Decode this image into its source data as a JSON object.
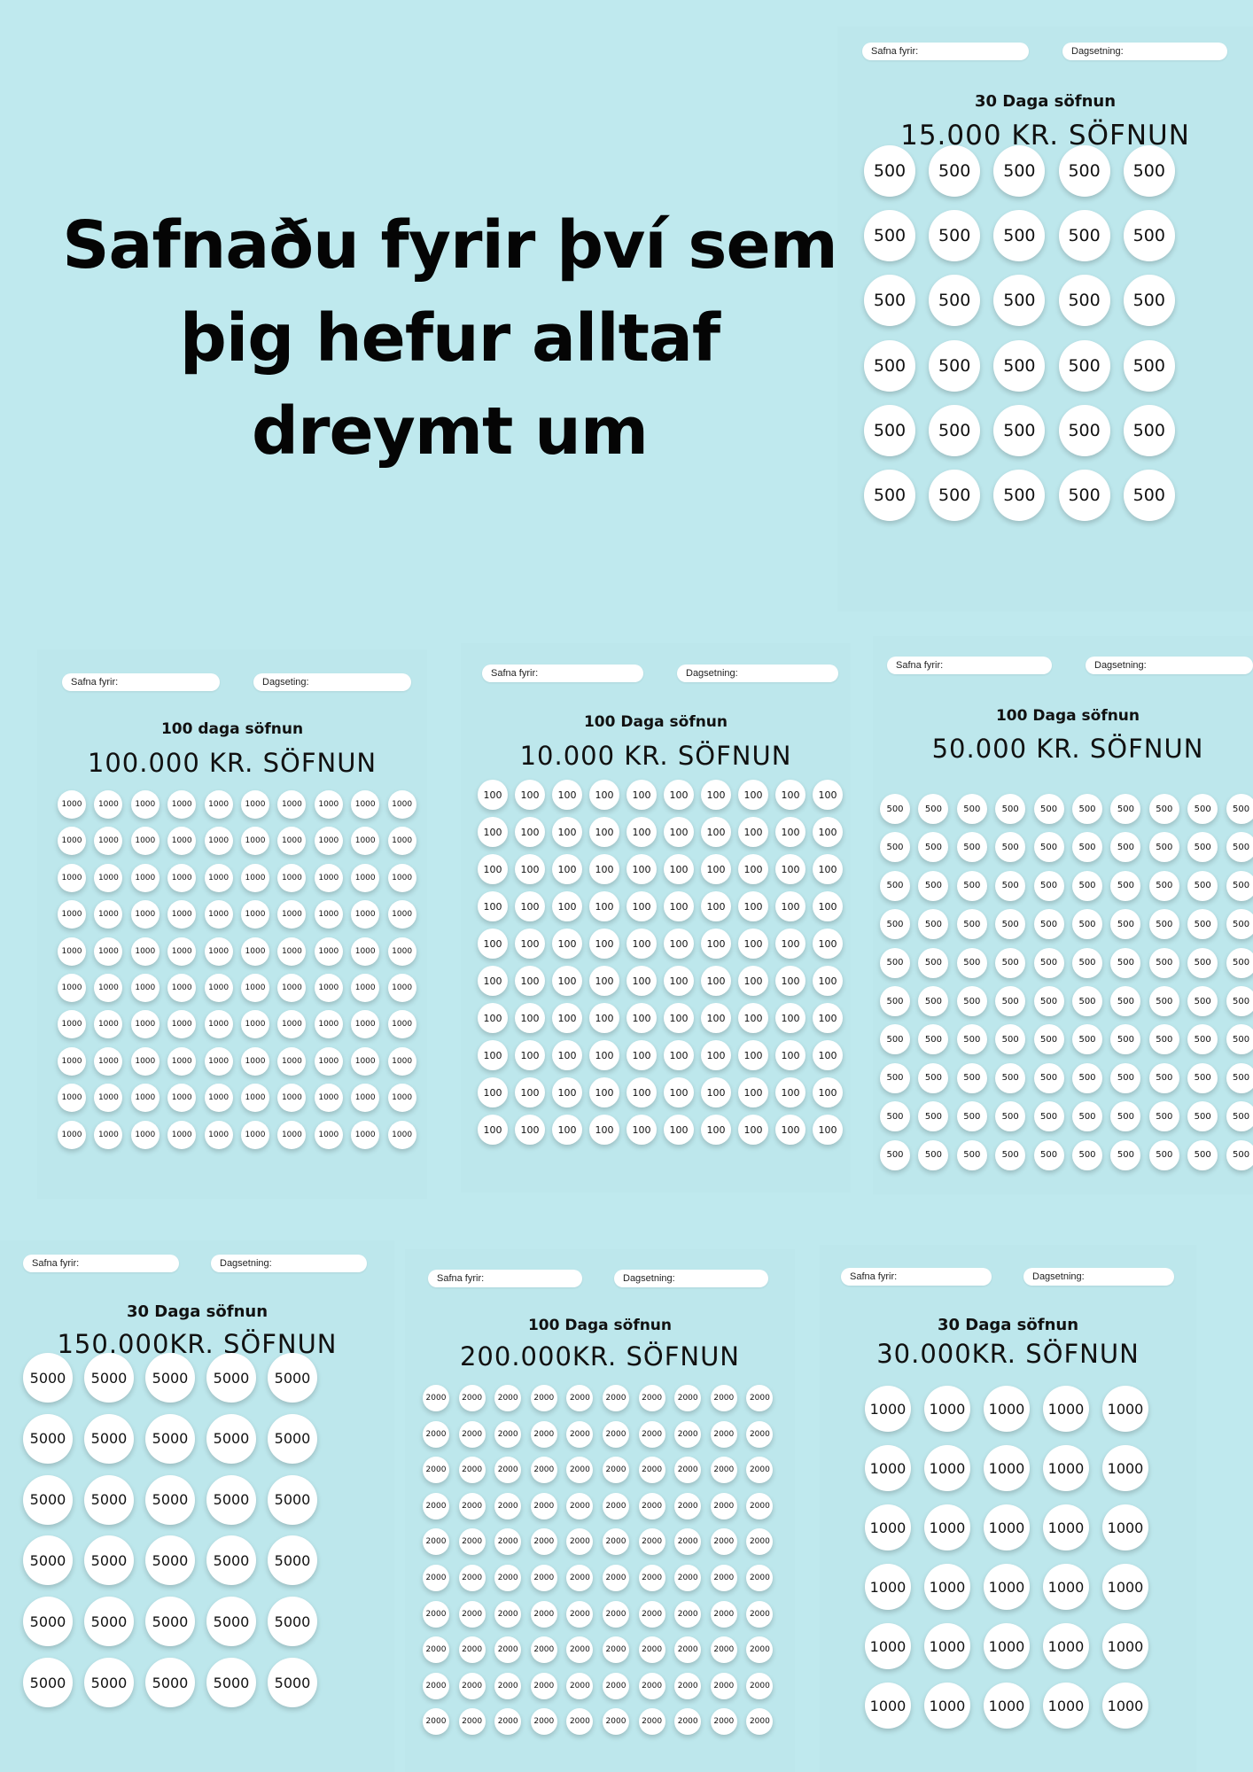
{
  "headline": [
    "Safnaðu fyrir því sem",
    "þig hefur alltaf",
    "dreymt um"
  ],
  "sheets": [
    {
      "id": "s1",
      "field1": "Safna fyrir:",
      "field2": "Dagsetning:",
      "title": "30 Daga söfnun",
      "amount": "15.000 KR. SÖFNUN",
      "coin": "500",
      "rows": 6,
      "cols": 5
    },
    {
      "id": "s2",
      "field1": "Safna fyrir:",
      "field2": "Dagseting:",
      "title": "100 daga söfnun",
      "amount": "100.000 KR. SÖFNUN",
      "coin": "1000",
      "rows": 10,
      "cols": 10
    },
    {
      "id": "s3",
      "field1": "Safna fyrir:",
      "field2": "Dagsetning:",
      "title": "100 Daga söfnun",
      "amount": "10.000 KR. SÖFNUN",
      "coin": "100",
      "rows": 10,
      "cols": 10
    },
    {
      "id": "s4",
      "field1": "Safna fyrir:",
      "field2": "Dagsetning:",
      "title": "100 Daga söfnun",
      "amount": "50.000 KR. SÖFNUN",
      "coin": "500",
      "rows": 10,
      "cols": 10
    },
    {
      "id": "s5",
      "field1": "Safna fyrir:",
      "field2": "Dagsetning:",
      "title": "30 Daga söfnun",
      "amount": "150.000KR. SÖFNUN",
      "coin": "5000",
      "rows": 6,
      "cols": 5
    },
    {
      "id": "s6",
      "field1": "Safna fyrir:",
      "field2": "Dagsetning:",
      "title": "100 Daga söfnun",
      "amount": "200.000KR. SÖFNUN",
      "coin": "2000",
      "rows": 10,
      "cols": 10
    },
    {
      "id": "s7",
      "field1": "Safna fyrir:",
      "field2": "Dagsetning:",
      "title": "30 Daga söfnun",
      "amount": "30.000KR. SÖFNUN",
      "coin": "1000",
      "rows": 6,
      "cols": 5
    }
  ]
}
